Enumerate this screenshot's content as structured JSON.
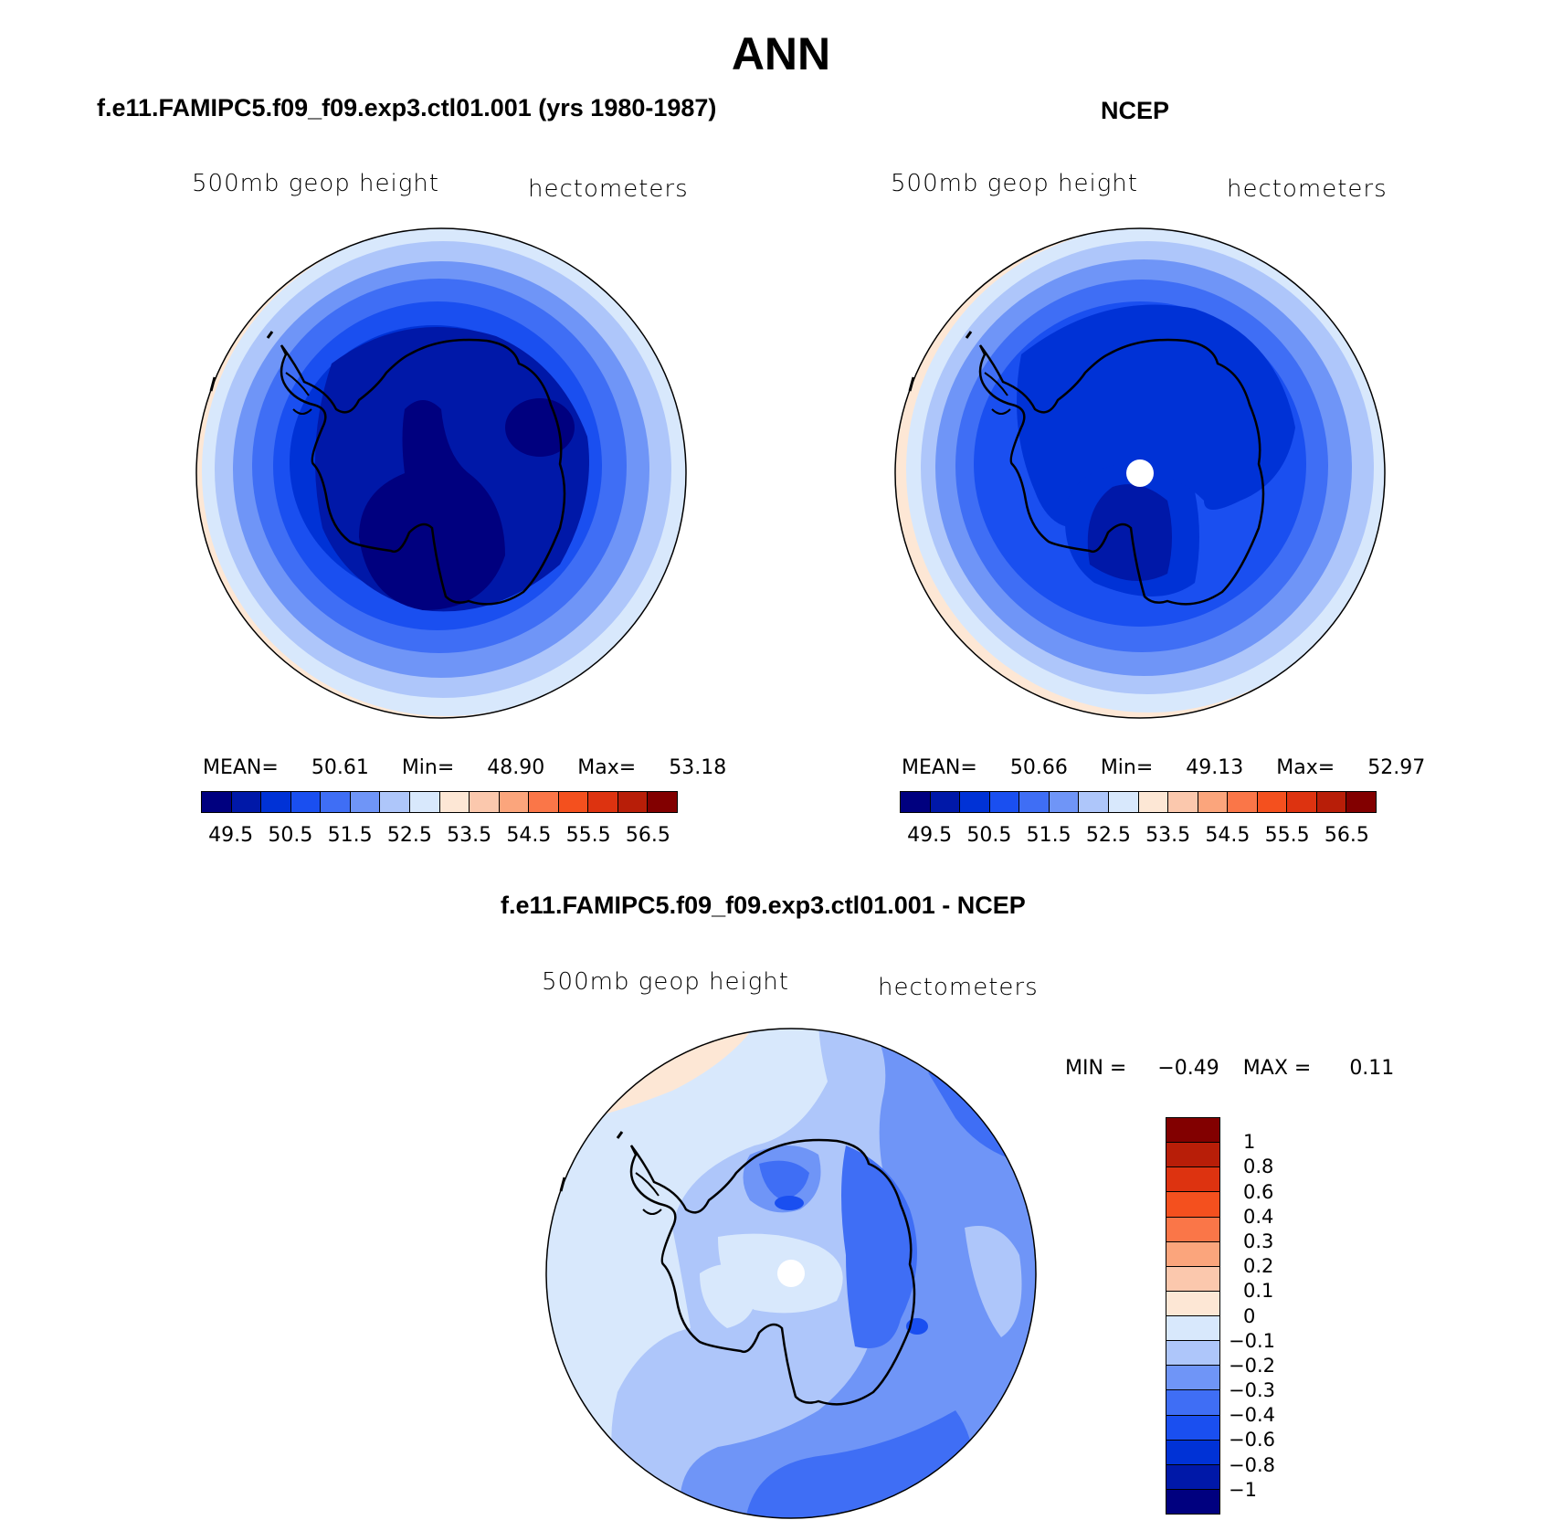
{
  "title": "ANN",
  "panels": [
    {
      "title": "f.e11.FAMIPC5.f09_f09.exp3.ctl01.001 (yrs 1980-1987)",
      "left_label": "500mb  geop  height",
      "right_label": "hectometers",
      "stats": {
        "mean_label": "MEAN=",
        "mean": "50.61",
        "min_label": "Min=",
        "min": "48.90",
        "max_label": "Max=",
        "max": "53.18"
      }
    },
    {
      "title": "NCEP",
      "left_label": "500mb  geop  height",
      "right_label": "hectometers",
      "stats": {
        "mean_label": "MEAN=",
        "mean": "50.66",
        "min_label": "Min=",
        "min": "49.13",
        "max_label": "Max=",
        "max": "52.97"
      }
    },
    {
      "title": "f.e11.FAMIPC5.f09_f09.exp3.ctl01.001 - NCEP",
      "left_label": "500mb  geop  height",
      "right_label": "hectometers",
      "stats": {
        "min_label": "MIN =",
        "min": "−0.49",
        "max_label": "MAX =",
        "max": "0.11"
      }
    }
  ],
  "colorbar_main": {
    "colors": [
      "#00007f",
      "#0018a8",
      "#0032d6",
      "#1a4ff0",
      "#3f6ef5",
      "#6f95f7",
      "#aec6fa",
      "#d8e8fc",
      "#fde7d5",
      "#fbc8ad",
      "#fba57c",
      "#fa7648",
      "#f4501e",
      "#dd3310",
      "#b81e08",
      "#820000"
    ],
    "ticks": [
      "49.5",
      "50.5",
      "51.5",
      "52.5",
      "53.5",
      "54.5",
      "55.5",
      "56.5"
    ]
  },
  "colorbar_diff": {
    "colors": [
      "#820000",
      "#b81e08",
      "#dd3310",
      "#f4501e",
      "#fa7648",
      "#fba57c",
      "#fbc8ad",
      "#fde7d5",
      "#d8e8fc",
      "#aec6fa",
      "#6f95f7",
      "#3f6ef5",
      "#1a4ff0",
      "#0032d6",
      "#0018a8",
      "#00007f"
    ],
    "labels": [
      "1",
      "0.8",
      "0.6",
      "0.4",
      "0.3",
      "0.2",
      "0.1",
      "0",
      "−0.1",
      "−0.2",
      "−0.3",
      "−0.4",
      "−0.6",
      "−0.8",
      "−1"
    ]
  }
}
